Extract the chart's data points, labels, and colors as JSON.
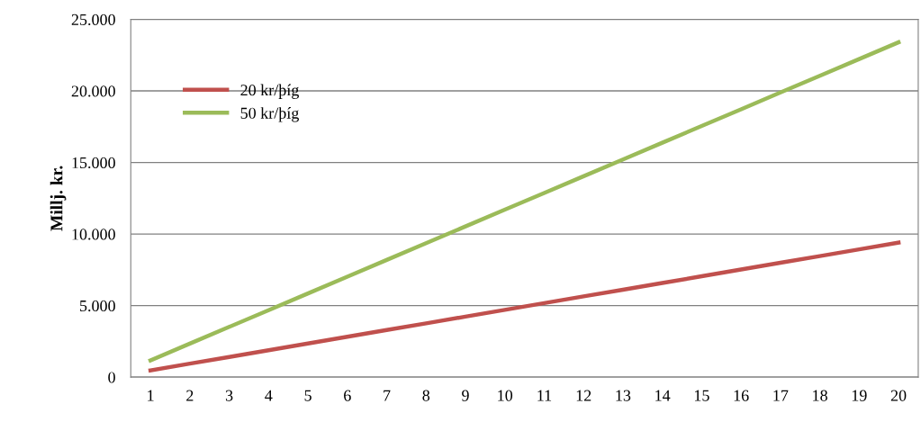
{
  "chart_data": {
    "type": "line",
    "ylabel": "Millj. kr.",
    "categories": [
      "1",
      "2",
      "3",
      "4",
      "5",
      "6",
      "7",
      "8",
      "9",
      "10",
      "11",
      "12",
      "13",
      "14",
      "15",
      "16",
      "17",
      "18",
      "19",
      "20"
    ],
    "series": [
      {
        "name": "20 kr/þíg",
        "color": "#c0504d",
        "values": [
          470,
          940,
          1410,
          1880,
          2350,
          2820,
          3290,
          3760,
          4230,
          4700,
          5170,
          5640,
          6110,
          6580,
          7050,
          7520,
          7990,
          8460,
          8930,
          9400
        ]
      },
      {
        "name": "50 kr/þíg",
        "color": "#9bbb59",
        "values": [
          1170,
          2340,
          3510,
          4680,
          5850,
          7020,
          8190,
          9360,
          10530,
          11700,
          12870,
          14040,
          15210,
          16380,
          17550,
          18720,
          19890,
          21060,
          22230,
          23400
        ]
      }
    ],
    "ylim": [
      0,
      25000
    ],
    "yticks": [
      {
        "value": 0,
        "label": "0"
      },
      {
        "value": 5000,
        "label": "5.000"
      },
      {
        "value": 10000,
        "label": "10.000"
      },
      {
        "value": 15000,
        "label": "15.000"
      },
      {
        "value": 20000,
        "label": "20.000"
      },
      {
        "value": 25000,
        "label": "25.000"
      }
    ],
    "grid": "y",
    "legend": "top left",
    "marker": "none",
    "line_style": "solid"
  }
}
